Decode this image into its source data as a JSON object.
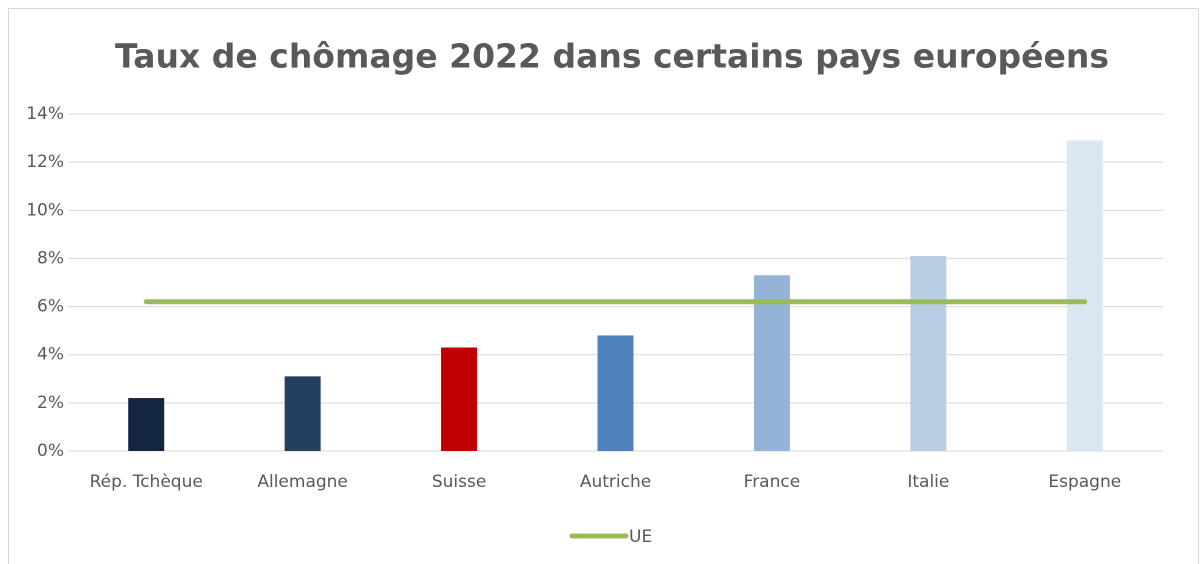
{
  "chart_data": {
    "type": "bar",
    "title": "Taux de chômage 2022 dans certains pays européens",
    "categories": [
      "Rép. Tchèque",
      "Allemagne",
      "Suisse",
      "Autriche",
      "France",
      "Italie",
      "Espagne"
    ],
    "values": [
      2.2,
      3.1,
      4.3,
      4.8,
      7.3,
      8.1,
      12.9
    ],
    "colors": [
      "#13253f",
      "#243f60",
      "#c00000",
      "#4f81bd",
      "#95b3d7",
      "#b9cde5",
      "#dce6f2"
    ],
    "series": [
      {
        "name": "UE",
        "type": "line",
        "color": "#9bbb59",
        "values": [
          6.2,
          6.2,
          6.2,
          6.2,
          6.2,
          6.2,
          6.2
        ]
      }
    ],
    "ylim": [
      0,
      14
    ],
    "yticks": [
      {
        "value": 0,
        "label": "0%"
      },
      {
        "value": 2,
        "label": "2%"
      },
      {
        "value": 4,
        "label": "4%"
      },
      {
        "value": 6,
        "label": "6%"
      },
      {
        "value": 8,
        "label": "8%"
      },
      {
        "value": 10,
        "label": "10%"
      },
      {
        "value": 12,
        "label": "12%"
      },
      {
        "value": 14,
        "label": "14%"
      }
    ],
    "grid": true,
    "legend": "bottom"
  }
}
